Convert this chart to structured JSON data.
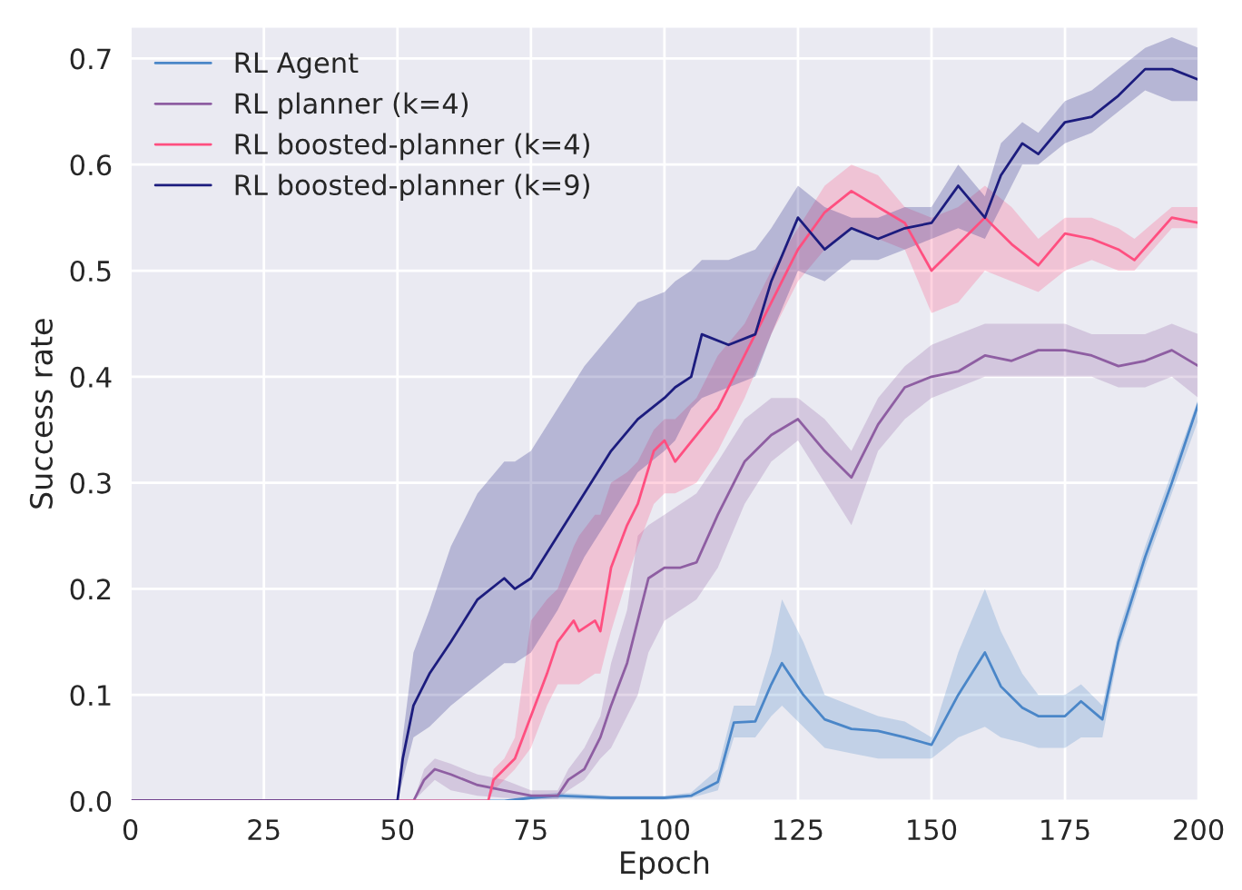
{
  "chart_data": {
    "type": "line",
    "xlabel": "Epoch",
    "ylabel": "Success rate",
    "xlim": [
      0,
      200
    ],
    "xticks": [
      0,
      25,
      50,
      75,
      100,
      125,
      150,
      175,
      200
    ],
    "ylim": [
      0,
      0.73
    ],
    "yticks": [
      {
        "value": 0,
        "label": "0.0"
      },
      0.1,
      0.2,
      0.3,
      0.4,
      0.5,
      0.6,
      0.7
    ],
    "grid": true,
    "legend": "top left",
    "marker": "none",
    "line_style": "solid",
    "series": [
      {
        "name": "RL Agent",
        "color": "#4a86c8",
        "x": [
          0,
          70,
          75,
          80,
          90,
          100,
          105,
          110,
          113,
          117,
          120,
          122,
          126,
          130,
          135,
          140,
          145,
          150,
          155,
          160,
          163,
          167,
          170,
          175,
          178,
          182,
          185,
          190,
          195,
          200
        ],
        "values": [
          0,
          0,
          0.003,
          0.005,
          0.003,
          0.003,
          0.005,
          0.018,
          0.074,
          0.075,
          0.11,
          0.13,
          0.1,
          0.077,
          0.068,
          0.066,
          0.06,
          0.053,
          0.1,
          0.14,
          0.108,
          0.088,
          0.08,
          0.08,
          0.094,
          0.077,
          0.15,
          0.23,
          0.3,
          0.375
        ],
        "lower": [
          0,
          0,
          0.001,
          0.002,
          0.001,
          0.001,
          0.003,
          0.01,
          0.06,
          0.06,
          0.08,
          0.09,
          0.07,
          0.05,
          0.045,
          0.04,
          0.04,
          0.04,
          0.06,
          0.07,
          0.06,
          0.055,
          0.05,
          0.05,
          0.06,
          0.06,
          0.14,
          0.22,
          0.29,
          0.36
        ],
        "upper": [
          0,
          0,
          0.005,
          0.008,
          0.005,
          0.005,
          0.008,
          0.03,
          0.09,
          0.09,
          0.14,
          0.19,
          0.15,
          0.1,
          0.09,
          0.08,
          0.075,
          0.06,
          0.14,
          0.2,
          0.16,
          0.12,
          0.1,
          0.1,
          0.11,
          0.09,
          0.16,
          0.24,
          0.31,
          0.38
        ]
      },
      {
        "name": "RL planner (k=4)",
        "color": "#8e5ea2",
        "x": [
          0,
          53,
          55,
          57,
          60,
          65,
          70,
          75,
          80,
          82,
          85,
          88,
          90,
          93,
          95,
          97,
          100,
          103,
          106,
          110,
          115,
          120,
          125,
          130,
          135,
          140,
          145,
          150,
          155,
          160,
          165,
          170,
          175,
          180,
          185,
          190,
          195,
          200
        ],
        "values": [
          0,
          0,
          0.02,
          0.03,
          0.025,
          0.015,
          0.01,
          0.005,
          0.005,
          0.02,
          0.03,
          0.06,
          0.09,
          0.13,
          0.17,
          0.21,
          0.22,
          0.22,
          0.225,
          0.27,
          0.32,
          0.345,
          0.36,
          0.33,
          0.305,
          0.355,
          0.39,
          0.4,
          0.405,
          0.42,
          0.415,
          0.425,
          0.425,
          0.42,
          0.41,
          0.415,
          0.425,
          0.41
        ],
        "lower": [
          0,
          0,
          0.01,
          0.02,
          0.01,
          0.005,
          0.003,
          0.002,
          0.002,
          0.01,
          0.02,
          0.04,
          0.05,
          0.08,
          0.1,
          0.14,
          0.17,
          0.18,
          0.19,
          0.22,
          0.28,
          0.32,
          0.34,
          0.3,
          0.26,
          0.33,
          0.36,
          0.38,
          0.39,
          0.4,
          0.4,
          0.4,
          0.4,
          0.4,
          0.39,
          0.39,
          0.4,
          0.38
        ],
        "upper": [
          0,
          0,
          0.03,
          0.04,
          0.035,
          0.025,
          0.02,
          0.01,
          0.01,
          0.03,
          0.05,
          0.08,
          0.13,
          0.18,
          0.25,
          0.26,
          0.27,
          0.28,
          0.29,
          0.32,
          0.36,
          0.38,
          0.38,
          0.36,
          0.33,
          0.38,
          0.41,
          0.43,
          0.44,
          0.45,
          0.45,
          0.45,
          0.45,
          0.44,
          0.44,
          0.44,
          0.45,
          0.44
        ]
      },
      {
        "name": "RL boosted-planner (k=4)",
        "color": "#ff4f80",
        "x": [
          0,
          67,
          68,
          70,
          72,
          75,
          78,
          80,
          83,
          84,
          87,
          88,
          90,
          93,
          95,
          98,
          100,
          102,
          106,
          110,
          115,
          120,
          125,
          130,
          135,
          140,
          145,
          150,
          155,
          160,
          165,
          170,
          175,
          180,
          185,
          188,
          195,
          200
        ],
        "values": [
          0,
          0,
          0.02,
          0.03,
          0.04,
          0.08,
          0.12,
          0.15,
          0.17,
          0.16,
          0.17,
          0.16,
          0.22,
          0.26,
          0.28,
          0.33,
          0.34,
          0.32,
          0.345,
          0.37,
          0.42,
          0.47,
          0.52,
          0.555,
          0.575,
          0.56,
          0.545,
          0.5,
          0.525,
          0.55,
          0.525,
          0.505,
          0.535,
          0.53,
          0.52,
          0.51,
          0.55,
          0.545
        ],
        "lower": [
          0,
          0,
          0.01,
          0.02,
          0.03,
          0.05,
          0.09,
          0.11,
          0.11,
          0.11,
          0.12,
          0.12,
          0.16,
          0.21,
          0.24,
          0.28,
          0.29,
          0.29,
          0.3,
          0.33,
          0.38,
          0.44,
          0.49,
          0.52,
          0.54,
          0.53,
          0.52,
          0.46,
          0.47,
          0.5,
          0.49,
          0.48,
          0.5,
          0.51,
          0.5,
          0.5,
          0.54,
          0.54
        ],
        "upper": [
          0,
          0,
          0.03,
          0.04,
          0.06,
          0.17,
          0.19,
          0.2,
          0.24,
          0.25,
          0.27,
          0.27,
          0.3,
          0.31,
          0.32,
          0.35,
          0.36,
          0.36,
          0.38,
          0.42,
          0.45,
          0.5,
          0.54,
          0.58,
          0.6,
          0.59,
          0.56,
          0.55,
          0.56,
          0.58,
          0.56,
          0.53,
          0.55,
          0.55,
          0.54,
          0.53,
          0.56,
          0.56
        ]
      },
      {
        "name": "RL boosted-planner (k=9)",
        "color": "#1c1c7e",
        "x": [
          0,
          50,
          51,
          53,
          56,
          60,
          65,
          70,
          72,
          75,
          80,
          85,
          90,
          95,
          100,
          102,
          105,
          107,
          112,
          117,
          120,
          125,
          130,
          135,
          140,
          145,
          150,
          155,
          160,
          163,
          167,
          170,
          175,
          180,
          185,
          190,
          195,
          200
        ],
        "values": [
          0,
          0,
          0.04,
          0.09,
          0.12,
          0.15,
          0.19,
          0.21,
          0.2,
          0.21,
          0.25,
          0.29,
          0.33,
          0.36,
          0.38,
          0.39,
          0.4,
          0.44,
          0.43,
          0.44,
          0.49,
          0.55,
          0.52,
          0.54,
          0.53,
          0.54,
          0.545,
          0.58,
          0.55,
          0.59,
          0.62,
          0.61,
          0.64,
          0.645,
          0.665,
          0.69,
          0.69,
          0.68
        ],
        "lower": [
          0,
          0,
          0.02,
          0.06,
          0.07,
          0.09,
          0.11,
          0.13,
          0.13,
          0.14,
          0.18,
          0.23,
          0.27,
          0.31,
          0.33,
          0.34,
          0.37,
          0.38,
          0.39,
          0.4,
          0.44,
          0.5,
          0.49,
          0.51,
          0.51,
          0.52,
          0.53,
          0.54,
          0.53,
          0.56,
          0.6,
          0.6,
          0.62,
          0.63,
          0.65,
          0.67,
          0.66,
          0.66
        ],
        "upper": [
          0,
          0,
          0.06,
          0.14,
          0.18,
          0.24,
          0.29,
          0.32,
          0.32,
          0.33,
          0.37,
          0.41,
          0.44,
          0.47,
          0.48,
          0.49,
          0.5,
          0.51,
          0.51,
          0.52,
          0.54,
          0.58,
          0.56,
          0.55,
          0.55,
          0.56,
          0.56,
          0.6,
          0.57,
          0.62,
          0.64,
          0.63,
          0.66,
          0.67,
          0.69,
          0.71,
          0.72,
          0.71
        ]
      }
    ]
  }
}
